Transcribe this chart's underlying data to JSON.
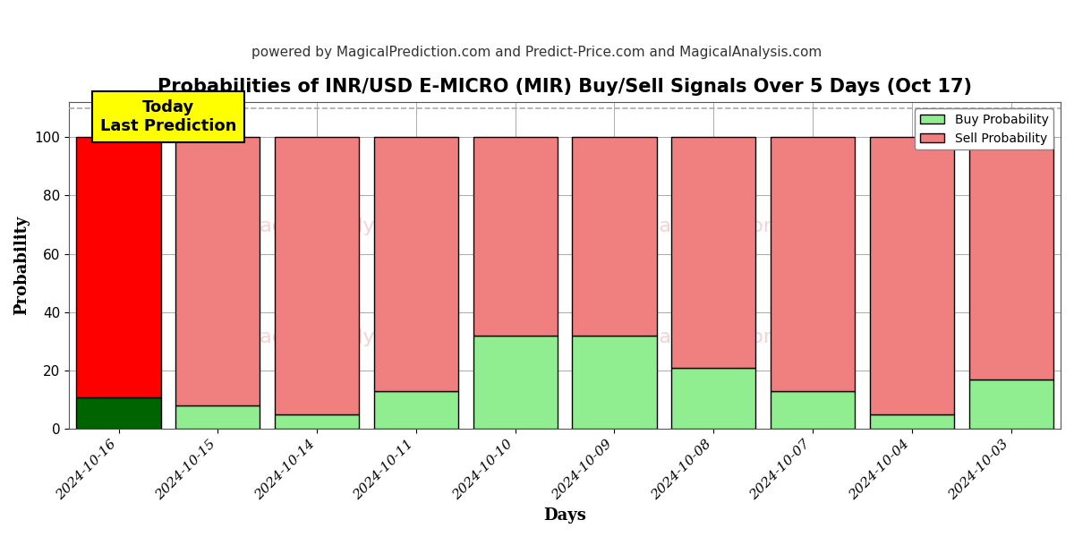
{
  "title": "Probabilities of INR/USD E-MICRO (MIR) Buy/Sell Signals Over 5 Days (Oct 17)",
  "subtitle": "powered by MagicalPrediction.com and Predict-Price.com and MagicalAnalysis.com",
  "xlabel": "Days",
  "ylabel": "Probability",
  "dates": [
    "2024-10-16",
    "2024-10-15",
    "2024-10-14",
    "2024-10-11",
    "2024-10-10",
    "2024-10-09",
    "2024-10-08",
    "2024-10-07",
    "2024-10-04",
    "2024-10-03"
  ],
  "buy_probs": [
    11,
    8,
    5,
    13,
    32,
    32,
    21,
    13,
    5,
    17
  ],
  "sell_probs": [
    89,
    92,
    95,
    87,
    68,
    68,
    79,
    87,
    95,
    83
  ],
  "today_bar_buy_color": "#006400",
  "today_bar_sell_color": "#FF0000",
  "other_bar_buy_color": "#90EE90",
  "other_bar_sell_color": "#F08080",
  "bar_edge_color": "#000000",
  "today_annotation_text": "Today\nLast Prediction",
  "today_annotation_bg": "#FFFF00",
  "today_annotation_fontsize": 13,
  "legend_buy_label": "Buy Probability",
  "legend_sell_label": "Sell Probability",
  "ylim": [
    0,
    112
  ],
  "yticks": [
    0,
    20,
    40,
    60,
    80,
    100
  ],
  "dashed_line_y": 110,
  "grid_color": "#aaaaaa",
  "background_color": "#FFFFFF",
  "title_fontsize": 15,
  "subtitle_fontsize": 11,
  "axis_label_fontsize": 13,
  "tick_fontsize": 11,
  "bar_width": 0.85
}
